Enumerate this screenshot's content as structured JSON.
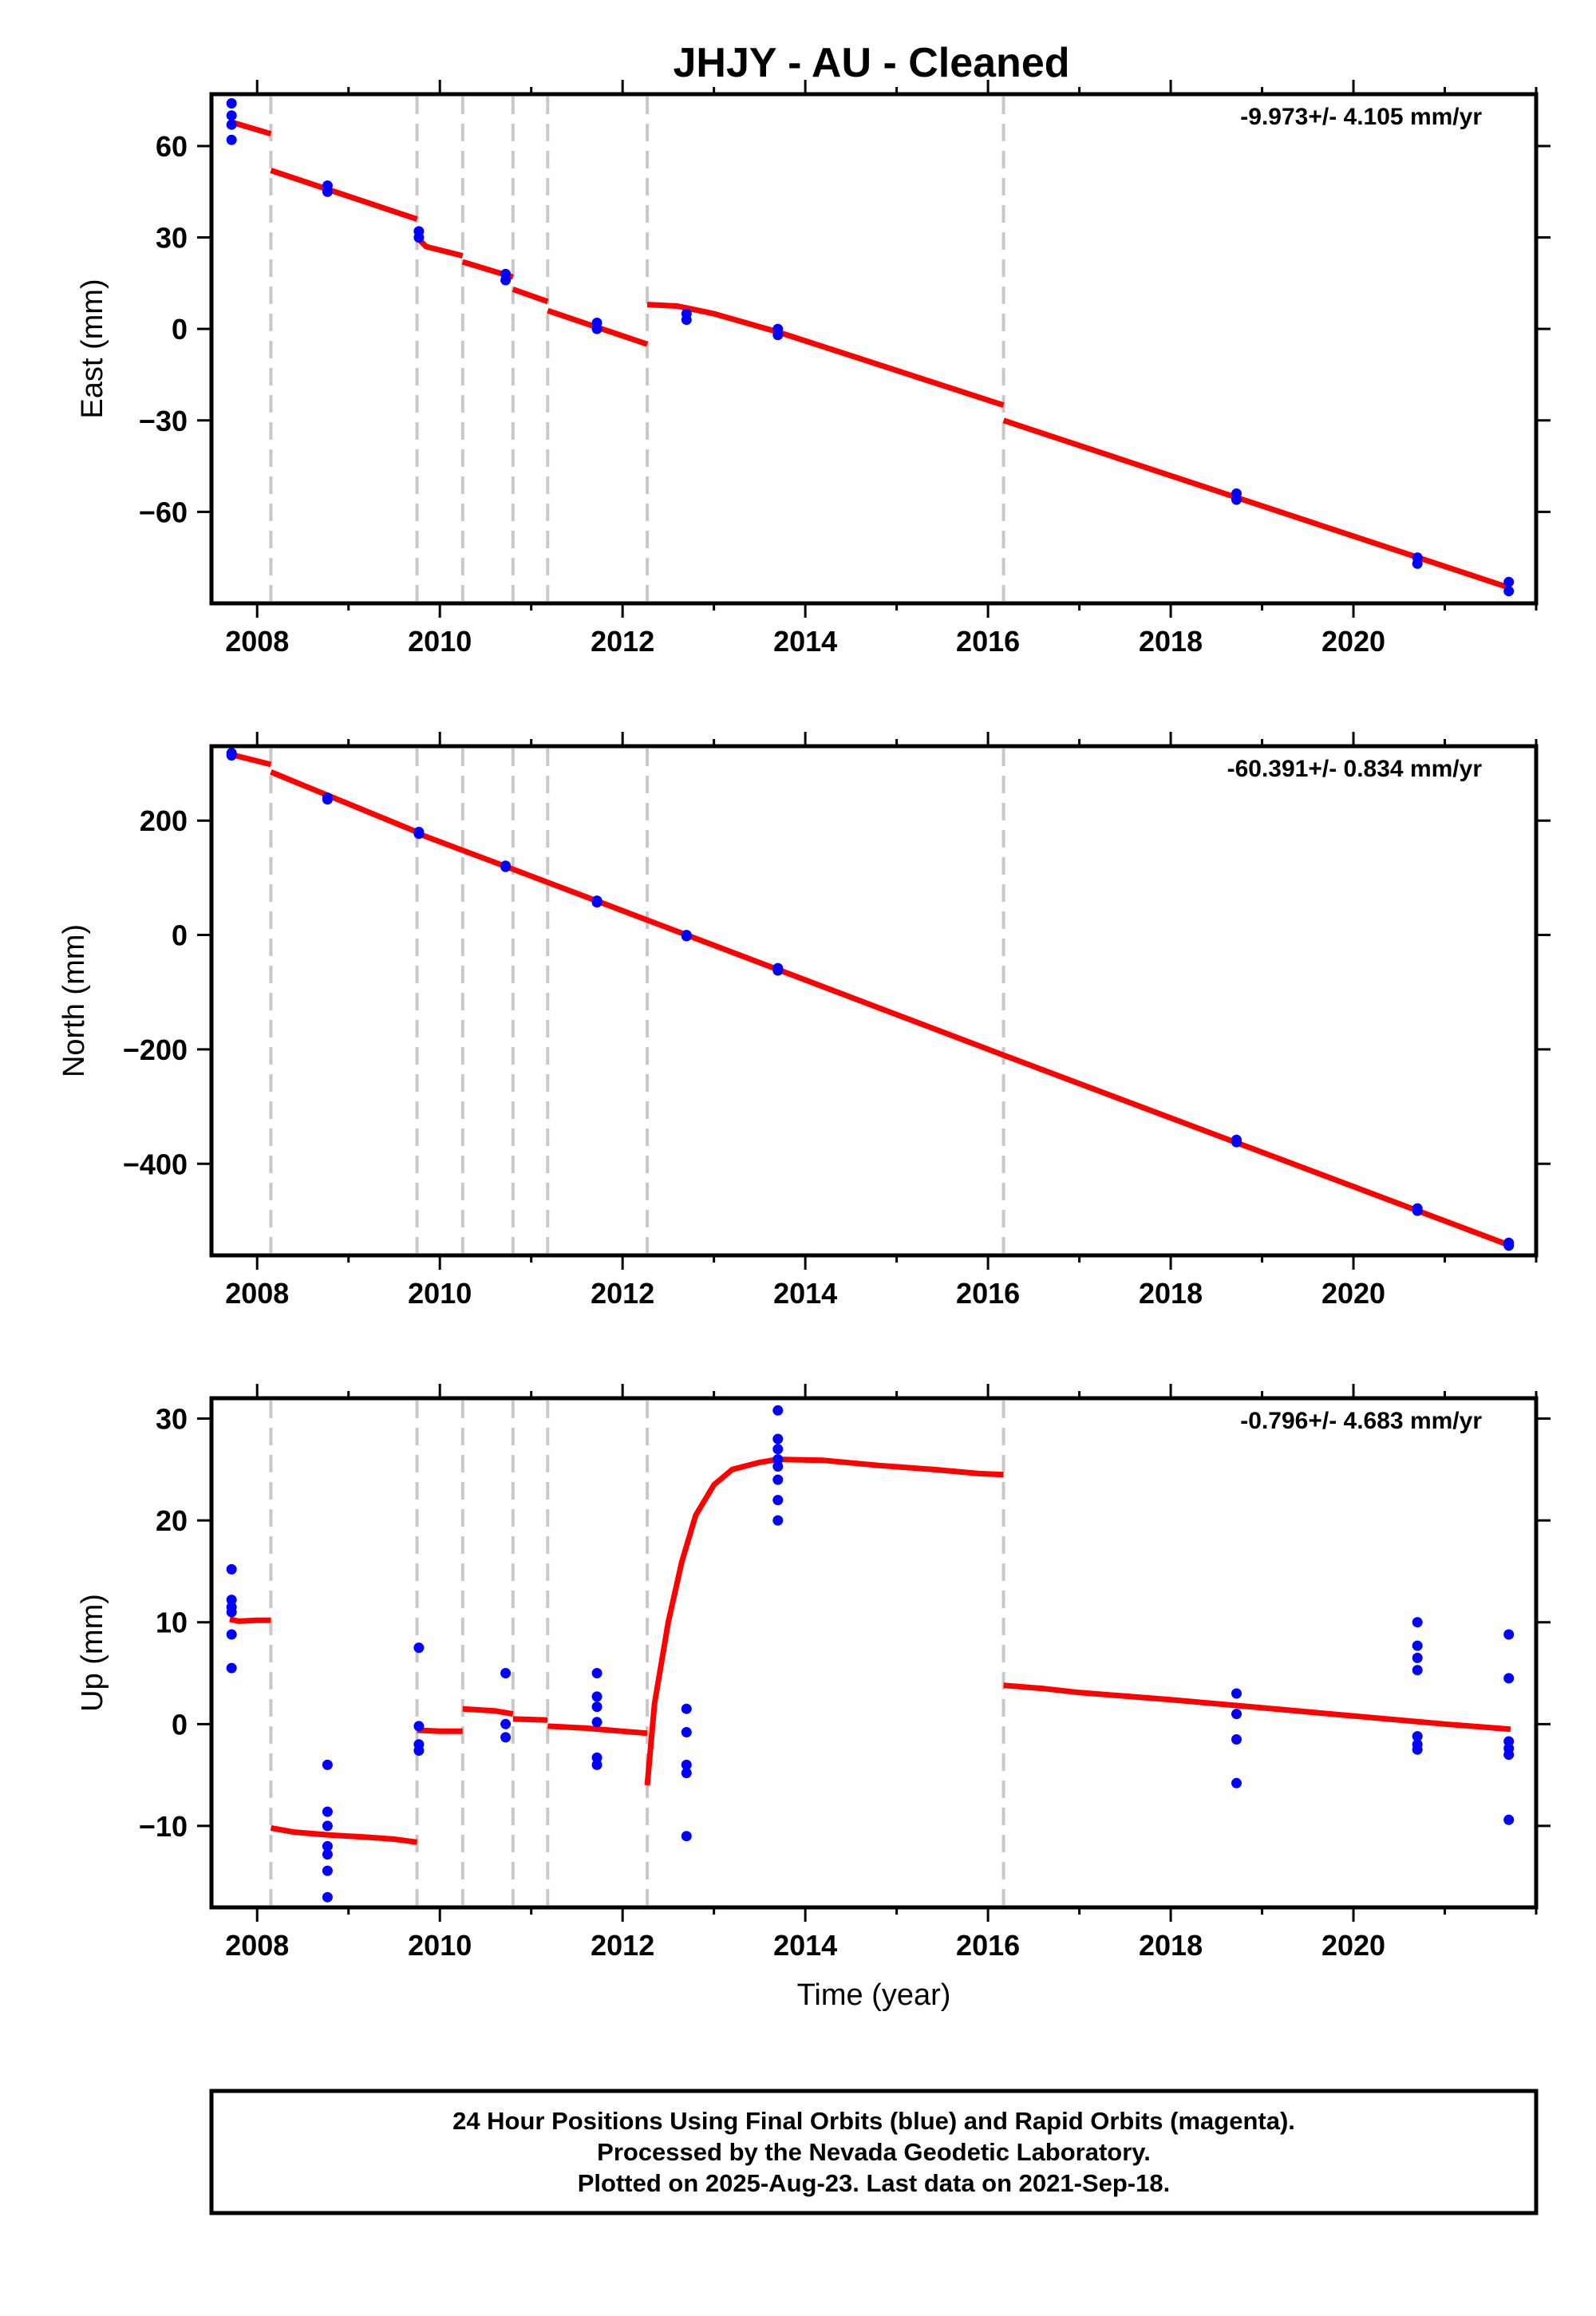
{
  "title": "JHJY  - AU - Cleaned",
  "footer": {
    "line1": "24 Hour Positions Using Final Orbits (blue) and Rapid Orbits (magenta).",
    "line2": "Processed by the Nevada Geodetic Laboratory.",
    "line3": "Plotted on 2025-Aug-23. Last data on 2021-Sep-18."
  },
  "colors": {
    "model": "#ff0000",
    "final_orbits": "#0000ff",
    "rapid_orbits": "#ff00ff",
    "event_lines": "#c8c8c8",
    "frame": "#000000"
  },
  "chart_data": [
    {
      "type": "scatter",
      "panel": "east",
      "ylabel": "East (mm)",
      "xlabel": "",
      "rate_text": "-9.973+/- 4.105 mm/yr",
      "xlim": [
        2007.5,
        2022.0
      ],
      "ylim": [
        -90,
        77
      ],
      "xticks": [
        2008,
        2010,
        2012,
        2014,
        2016,
        2018,
        2020
      ],
      "yticks": [
        -60,
        -30,
        0,
        30,
        60
      ],
      "grid": false,
      "event_lines": [
        2008.15,
        2009.75,
        2010.25,
        2010.8,
        2011.18,
        2012.27,
        2016.17
      ],
      "series": [
        {
          "kind": "points",
          "color": "#0000ff",
          "points": [
            [
              2007.72,
              74
            ],
            [
              2007.72,
              70
            ],
            [
              2007.72,
              67
            ],
            [
              2007.72,
              62
            ],
            [
              2008.77,
              47
            ],
            [
              2008.77,
              45
            ],
            [
              2009.77,
              32
            ],
            [
              2009.77,
              30
            ],
            [
              2010.72,
              18
            ],
            [
              2010.72,
              16
            ],
            [
              2011.72,
              2
            ],
            [
              2011.72,
              0
            ],
            [
              2012.7,
              5
            ],
            [
              2012.7,
              3
            ],
            [
              2013.7,
              0
            ],
            [
              2013.7,
              -2
            ],
            [
              2018.72,
              -54
            ],
            [
              2018.72,
              -56
            ],
            [
              2020.7,
              -75
            ],
            [
              2020.7,
              -77
            ],
            [
              2021.7,
              -83
            ],
            [
              2021.7,
              -86
            ]
          ]
        },
        {
          "kind": "model",
          "color": "#ff0000",
          "segments": [
            [
              [
                2007.7,
                68
              ],
              [
                2008.15,
                64
              ]
            ],
            [
              [
                2008.15,
                52
              ],
              [
                2009.75,
                36
              ]
            ],
            [
              [
                2009.75,
                30
              ],
              [
                2009.85,
                27
              ],
              [
                2010.25,
                24
              ]
            ],
            [
              [
                2010.25,
                22
              ],
              [
                2010.8,
                17
              ]
            ],
            [
              [
                2010.8,
                13
              ],
              [
                2011.18,
                9
              ]
            ],
            [
              [
                2011.18,
                6
              ],
              [
                2012.27,
                -5
              ]
            ],
            [
              [
                2012.27,
                8
              ],
              [
                2012.6,
                7.5
              ],
              [
                2013.0,
                5
              ],
              [
                2013.7,
                -1
              ],
              [
                2016.17,
                -25
              ]
            ],
            [
              [
                2016.17,
                -30
              ],
              [
                2021.72,
                -85
              ]
            ]
          ]
        }
      ]
    },
    {
      "type": "scatter",
      "panel": "north",
      "ylabel": "North (mm)",
      "xlabel": "",
      "rate_text": "-60.391+/- 0.834 mm/yr",
      "xlim": [
        2007.5,
        2022.0
      ],
      "ylim": [
        -560,
        330
      ],
      "xticks": [
        2008,
        2010,
        2012,
        2014,
        2016,
        2018,
        2020
      ],
      "yticks": [
        -400,
        -200,
        0,
        200
      ],
      "grid": false,
      "event_lines": [
        2008.15,
        2009.75,
        2010.25,
        2010.8,
        2011.18,
        2012.27,
        2016.17
      ],
      "series": [
        {
          "kind": "points",
          "color": "#0000ff",
          "points": [
            [
              2007.72,
              318
            ],
            [
              2007.72,
              314
            ],
            [
              2008.77,
              240
            ],
            [
              2008.77,
              237
            ],
            [
              2009.77,
              180
            ],
            [
              2009.77,
              177
            ],
            [
              2010.72,
              121
            ],
            [
              2010.72,
              119
            ],
            [
              2011.72,
              60
            ],
            [
              2011.72,
              57
            ],
            [
              2012.7,
              0
            ],
            [
              2012.7,
              -2
            ],
            [
              2013.7,
              -58
            ],
            [
              2013.7,
              -62
            ],
            [
              2018.72,
              -358
            ],
            [
              2018.72,
              -362
            ],
            [
              2020.7,
              -478
            ],
            [
              2020.7,
              -482
            ],
            [
              2021.7,
              -538
            ],
            [
              2021.7,
              -543
            ]
          ]
        },
        {
          "kind": "model",
          "color": "#ff0000",
          "segments": [
            [
              [
                2007.7,
                316
              ],
              [
                2008.15,
                298
              ]
            ],
            [
              [
                2008.15,
                285
              ],
              [
                2009.75,
                180
              ]
            ],
            [
              [
                2009.75,
                178
              ],
              [
                2010.25,
                148
              ]
            ],
            [
              [
                2010.25,
                148
              ],
              [
                2010.8,
                115
              ]
            ],
            [
              [
                2010.8,
                115
              ],
              [
                2011.18,
                92
              ]
            ],
            [
              [
                2011.18,
                92
              ],
              [
                2012.27,
                26
              ]
            ],
            [
              [
                2012.27,
                26
              ],
              [
                2016.17,
                -210
              ]
            ],
            [
              [
                2016.17,
                -210
              ],
              [
                2021.72,
                -543
              ]
            ]
          ]
        }
      ]
    },
    {
      "type": "scatter",
      "panel": "up",
      "ylabel": "Up (mm)",
      "xlabel": "Time (year)",
      "rate_text": "-0.796+/- 4.683 mm/yr",
      "xlim": [
        2007.5,
        2022.0
      ],
      "ylim": [
        -18,
        32
      ],
      "xticks": [
        2008,
        2010,
        2012,
        2014,
        2016,
        2018,
        2020
      ],
      "yticks": [
        -10,
        0,
        10,
        20,
        30
      ],
      "grid": false,
      "event_lines": [
        2008.15,
        2009.75,
        2010.25,
        2010.8,
        2011.18,
        2012.27,
        2016.17
      ],
      "series": [
        {
          "kind": "points",
          "color": "#0000ff",
          "points": [
            [
              2007.72,
              15.2
            ],
            [
              2007.72,
              12.2
            ],
            [
              2007.72,
              11.5
            ],
            [
              2007.72,
              11
            ],
            [
              2007.72,
              8.8
            ],
            [
              2007.72,
              5.5
            ],
            [
              2008.77,
              -4
            ],
            [
              2008.77,
              -8.6
            ],
            [
              2008.77,
              -10
            ],
            [
              2008.77,
              -12
            ],
            [
              2008.77,
              -12.8
            ],
            [
              2008.77,
              -14.4
            ],
            [
              2008.77,
              -17
            ],
            [
              2009.77,
              7.5
            ],
            [
              2009.77,
              -0.2
            ],
            [
              2009.77,
              -2
            ],
            [
              2009.77,
              -2.6
            ],
            [
              2010.72,
              5
            ],
            [
              2010.72,
              0
            ],
            [
              2010.72,
              -1.3
            ],
            [
              2011.72,
              5
            ],
            [
              2011.72,
              2.7
            ],
            [
              2011.72,
              1.7
            ],
            [
              2011.72,
              0.2
            ],
            [
              2011.72,
              -3.3
            ],
            [
              2011.72,
              -4
            ],
            [
              2012.7,
              1.5
            ],
            [
              2012.7,
              -0.8
            ],
            [
              2012.7,
              -4
            ],
            [
              2012.7,
              -4.8
            ],
            [
              2012.7,
              -11
            ],
            [
              2013.7,
              30.8
            ],
            [
              2013.7,
              28
            ],
            [
              2013.7,
              27
            ],
            [
              2013.7,
              26
            ],
            [
              2013.7,
              25.3
            ],
            [
              2013.7,
              24
            ],
            [
              2013.7,
              22
            ],
            [
              2013.7,
              20
            ],
            [
              2018.72,
              3
            ],
            [
              2018.72,
              1
            ],
            [
              2018.72,
              -1.5
            ],
            [
              2018.72,
              -5.8
            ],
            [
              2020.7,
              10
            ],
            [
              2020.7,
              7.7
            ],
            [
              2020.7,
              6.5
            ],
            [
              2020.7,
              5.3
            ],
            [
              2020.7,
              -1.2
            ],
            [
              2020.7,
              -2
            ],
            [
              2020.7,
              -2.5
            ],
            [
              2021.7,
              8.8
            ],
            [
              2021.7,
              4.5
            ],
            [
              2021.7,
              -1.7
            ],
            [
              2021.7,
              -2.4
            ],
            [
              2021.7,
              -3
            ],
            [
              2021.7,
              -9.4
            ]
          ]
        },
        {
          "kind": "model",
          "color": "#ff0000",
          "segments": [
            [
              [
                2007.7,
                10.3
              ],
              [
                2007.8,
                10.1
              ],
              [
                2008.0,
                10.2
              ],
              [
                2008.15,
                10.2
              ]
            ],
            [
              [
                2008.15,
                -10.2
              ],
              [
                2008.4,
                -10.6
              ],
              [
                2008.8,
                -10.9
              ],
              [
                2009.2,
                -11.1
              ],
              [
                2009.5,
                -11.3
              ],
              [
                2009.75,
                -11.6
              ]
            ],
            [
              [
                2009.75,
                -0.6
              ],
              [
                2010.0,
                -0.7
              ],
              [
                2010.25,
                -0.7
              ]
            ],
            [
              [
                2010.25,
                1.5
              ],
              [
                2010.6,
                1.3
              ],
              [
                2010.8,
                1.0
              ]
            ],
            [
              [
                2010.8,
                0.5
              ],
              [
                2011.18,
                0.4
              ]
            ],
            [
              [
                2011.18,
                -0.2
              ],
              [
                2011.6,
                -0.4
              ],
              [
                2012.0,
                -0.7
              ],
              [
                2012.27,
                -0.9
              ]
            ],
            [
              [
                2012.27,
                -6
              ],
              [
                2012.35,
                2
              ],
              [
                2012.5,
                10
              ],
              [
                2012.65,
                16
              ],
              [
                2012.8,
                20.5
              ],
              [
                2013.0,
                23.5
              ],
              [
                2013.2,
                25
              ],
              [
                2013.5,
                25.7
              ],
              [
                2013.7,
                26
              ],
              [
                2014.2,
                25.9
              ],
              [
                2014.8,
                25.4
              ],
              [
                2015.4,
                25.0
              ],
              [
                2015.9,
                24.6
              ],
              [
                2016.17,
                24.5
              ]
            ],
            [
              [
                2016.17,
                3.8
              ],
              [
                2016.6,
                3.5
              ],
              [
                2017.0,
                3.1
              ],
              [
                2018.0,
                2.4
              ],
              [
                2019.0,
                1.6
              ],
              [
                2020.0,
                0.8
              ],
              [
                2021.0,
                0.0
              ],
              [
                2021.72,
                -0.5
              ]
            ]
          ]
        }
      ]
    }
  ]
}
